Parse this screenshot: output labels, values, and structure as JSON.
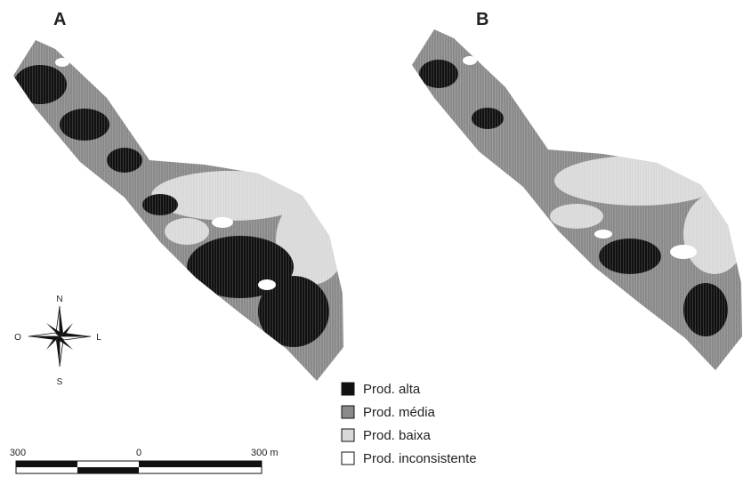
{
  "panels": [
    {
      "label": "A"
    },
    {
      "label": "B"
    }
  ],
  "compass": {
    "north": "N",
    "south": "S",
    "west": "O",
    "east": "L"
  },
  "legend": [
    {
      "label": "Prod. alta"
    },
    {
      "label": "Prod. média"
    },
    {
      "label": "Prod. baixa"
    },
    {
      "label": "Prod. inconsistente"
    }
  ],
  "scale_bar": {
    "left": "300",
    "middle": "0",
    "right": "300 m"
  }
}
